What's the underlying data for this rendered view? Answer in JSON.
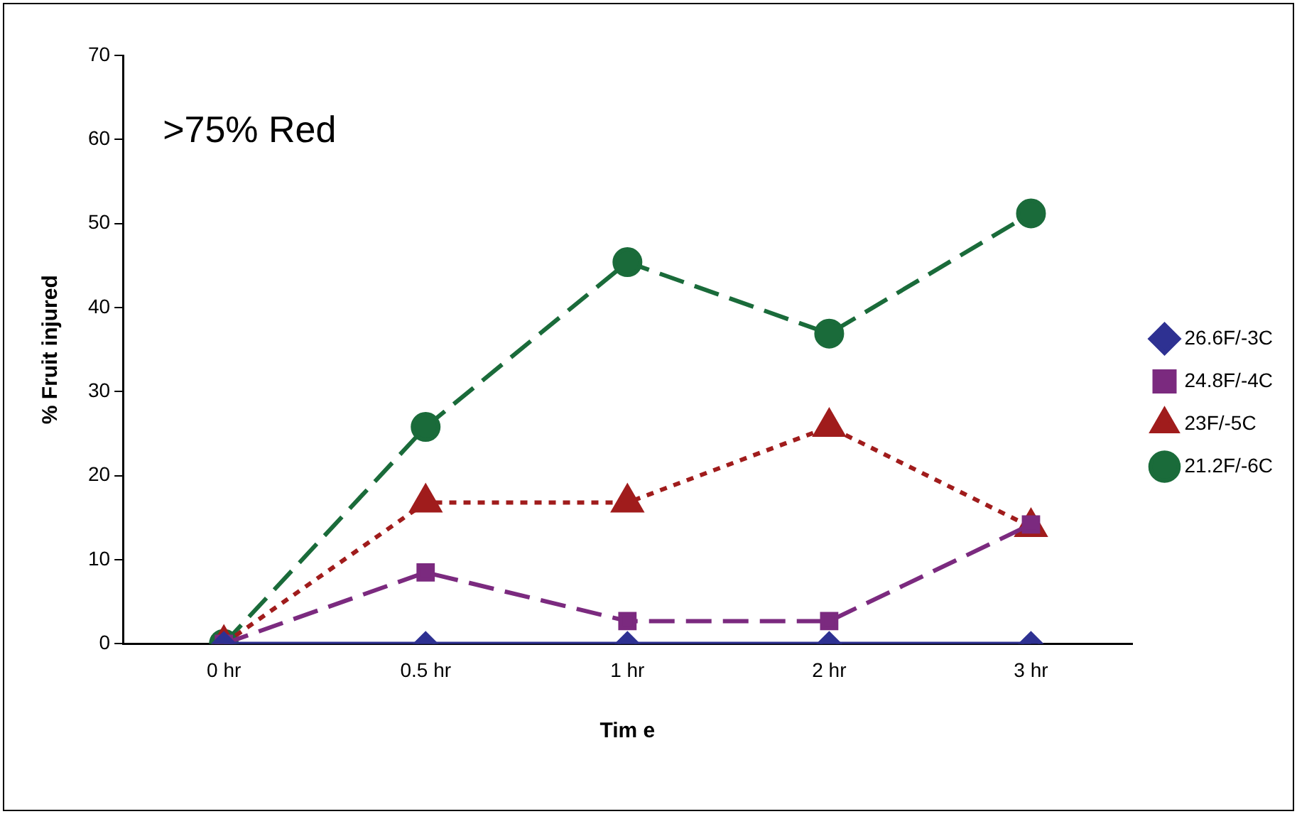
{
  "chart_data": {
    "type": "line",
    "title": ">75% Red",
    "xlabel": "Tim e",
    "ylabel": "% Fruit injured",
    "categories": [
      "0 hr",
      "0.5 hr",
      "1 hr",
      "2 hr",
      "3 hr"
    ],
    "series": [
      {
        "name": "26.6F/-3C",
        "color": "#2e3192",
        "values": [
          0,
          0,
          0,
          0,
          0
        ],
        "marker": "diamond",
        "line_style": "solid"
      },
      {
        "name": "24.8F/-4C",
        "color": "#7b2a7f",
        "values": [
          0,
          8.5,
          2.7,
          2.7,
          14.2
        ],
        "marker": "square",
        "line_style": "dashed"
      },
      {
        "name": "23F/-5C",
        "color": "#a01c1c",
        "values": [
          0,
          16.8,
          16.8,
          25.8,
          13.9
        ],
        "marker": "triangle",
        "line_style": "dotted"
      },
      {
        "name": "21.2F/-6C",
        "color": "#1a6b3a",
        "values": [
          0,
          25.8,
          45.4,
          36.9,
          51.2
        ],
        "marker": "circle",
        "line_style": "dashed"
      }
    ],
    "ylim": [
      0,
      70
    ],
    "yticks": [
      0,
      10,
      20,
      30,
      40,
      50,
      60,
      70
    ],
    "grid": false,
    "legend": "right"
  }
}
